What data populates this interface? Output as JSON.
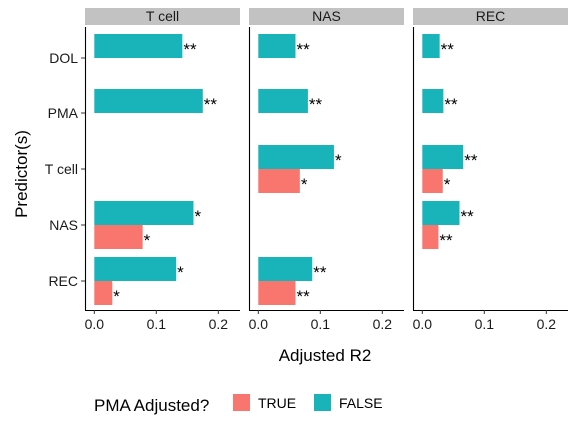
{
  "chart_data": {
    "type": "bar",
    "orientation": "horizontal",
    "xlabel": "Adjusted R2",
    "ylabel": "Predictor(s)",
    "xlim": [
      -0.015,
      0.235
    ],
    "xticks": [
      0.0,
      0.1,
      0.2
    ],
    "xtick_labels": [
      "0.0",
      "0.1",
      "0.2"
    ],
    "categories": [
      "DOL",
      "PMA",
      "T cell",
      "NAS",
      "REC"
    ],
    "legend": {
      "title": "PMA Adjusted?",
      "placement": "bottom",
      "entries": [
        {
          "label": "TRUE",
          "color": "#F8766D"
        },
        {
          "label": "FALSE",
          "color": "#19B4BA"
        }
      ]
    },
    "series": [
      {
        "name": "TRUE",
        "color": "#F8766D"
      },
      {
        "name": "FALSE",
        "color": "#19B4BA"
      }
    ],
    "panels": [
      {
        "title": "T cell",
        "bars": [
          {
            "category": "DOL",
            "series": "FALSE",
            "value": 0.142,
            "sig": "**"
          },
          {
            "category": "PMA",
            "series": "FALSE",
            "value": 0.175,
            "sig": "**"
          },
          {
            "category": "NAS",
            "series": "FALSE",
            "value": 0.16,
            "sig": "*"
          },
          {
            "category": "NAS",
            "series": "TRUE",
            "value": 0.078,
            "sig": "*"
          },
          {
            "category": "REC",
            "series": "FALSE",
            "value": 0.132,
            "sig": "*"
          },
          {
            "category": "REC",
            "series": "TRUE",
            "value": 0.029,
            "sig": "*"
          }
        ]
      },
      {
        "title": "NAS",
        "bars": [
          {
            "category": "DOL",
            "series": "FALSE",
            "value": 0.06,
            "sig": "**"
          },
          {
            "category": "PMA",
            "series": "FALSE",
            "value": 0.08,
            "sig": "**"
          },
          {
            "category": "T cell",
            "series": "FALSE",
            "value": 0.122,
            "sig": "*"
          },
          {
            "category": "T cell",
            "series": "TRUE",
            "value": 0.067,
            "sig": "*"
          },
          {
            "category": "REC",
            "series": "FALSE",
            "value": 0.087,
            "sig": "**"
          },
          {
            "category": "REC",
            "series": "TRUE",
            "value": 0.06,
            "sig": "**"
          }
        ]
      },
      {
        "title": "REC",
        "bars": [
          {
            "category": "DOL",
            "series": "FALSE",
            "value": 0.028,
            "sig": "**"
          },
          {
            "category": "PMA",
            "series": "FALSE",
            "value": 0.034,
            "sig": "**"
          },
          {
            "category": "T cell",
            "series": "FALSE",
            "value": 0.066,
            "sig": "**"
          },
          {
            "category": "T cell",
            "series": "TRUE",
            "value": 0.033,
            "sig": "*"
          },
          {
            "category": "NAS",
            "series": "FALSE",
            "value": 0.06,
            "sig": "**"
          },
          {
            "category": "NAS",
            "series": "TRUE",
            "value": 0.026,
            "sig": "**"
          }
        ]
      }
    ]
  }
}
